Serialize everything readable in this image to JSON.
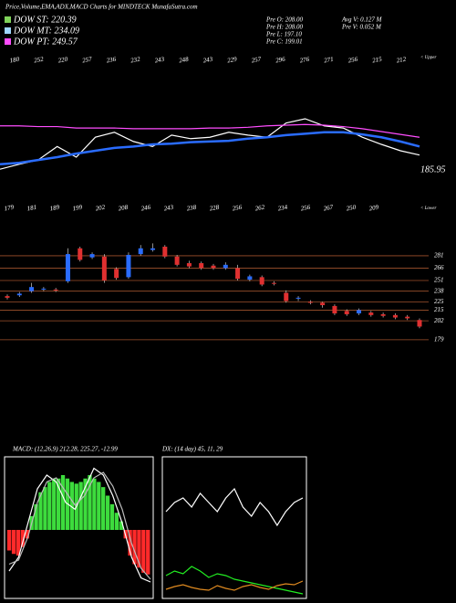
{
  "header": {
    "title": "Price,Volume,EMA,ADX,MACD Charts for MINDTECK MunafaSutra.com",
    "legend": [
      {
        "label": "DOW ST: 220.39",
        "color": "#7fd35a"
      },
      {
        "label": "DOW MT: 234.09",
        "color": "#9fd8ff"
      },
      {
        "label": "DOW PT: 249.57",
        "color": "#ff4dff"
      }
    ],
    "info": [
      "Pre  O: 208.00",
      "Pre  H: 208.00",
      "Pre  L: 197.10",
      "Pre  C: 199.01",
      "Avg V: 0.127 M",
      "Pre  V: 0.052 M"
    ],
    "upper": "< Upper",
    "lower": "< Lower",
    "last_price": "185.95",
    "top_labels": [
      "180",
      "252",
      "220",
      "257",
      "236",
      "232",
      "243",
      "248",
      "243",
      "229",
      "257",
      "296",
      "276",
      "271",
      "256",
      "215",
      "212"
    ],
    "bottom_labels": [
      "179",
      "181",
      "189",
      "199",
      "202",
      "208",
      "246",
      "243",
      "238",
      "228",
      "256",
      "262",
      "234",
      "256",
      "267",
      "250",
      "209"
    ],
    "macd_label": "MACD: (12,26,9) 212.28, 225.27, -12.99",
    "adx_label": "DX: (14 day) 45, 11, 29"
  },
  "chart_data": [
    {
      "type": "line",
      "ylim": [
        140,
        320
      ],
      "series": [
        {
          "name": "Price",
          "color": "#ffffff",
          "values": [
            159,
            166,
            172,
            191,
            176,
            204,
            211,
            198,
            191,
            207,
            202,
            204,
            211,
            207,
            204,
            224,
            230,
            220,
            217,
            204,
            194,
            185,
            179
          ]
        },
        {
          "name": "EMA",
          "color": "#2a6cff",
          "values": [
            166,
            168,
            172,
            176,
            181,
            185,
            189,
            191,
            194,
            195,
            197,
            198,
            199,
            202,
            204,
            207,
            209,
            211,
            211,
            208,
            204,
            198,
            191
          ]
        },
        {
          "name": "DOW PT",
          "color": "#ff4dff",
          "values": [
            220,
            220,
            219,
            219,
            217,
            217,
            217,
            216,
            216,
            216,
            216,
            217,
            217,
            218,
            220,
            221,
            222,
            221,
            219,
            216,
            212,
            208,
            204
          ]
        }
      ]
    },
    {
      "type": "candlestick",
      "up_color": "#2a6cff",
      "down_color": "#e03030",
      "ylim": [
        170,
        292
      ],
      "yticks": [
        281,
        266,
        251,
        238,
        225,
        215,
        202,
        179
      ],
      "open": [
        232,
        233,
        238,
        240,
        240,
        250,
        290,
        279,
        280,
        265,
        255,
        283,
        288,
        292,
        280,
        272,
        272,
        269,
        266,
        266,
        252,
        255,
        248,
        236,
        229,
        225,
        224,
        220,
        214,
        211,
        212,
        210,
        209,
        207,
        203
      ],
      "high": [
        234,
        237,
        248,
        243,
        242,
        290,
        292,
        285,
        283,
        267,
        285,
        294,
        296,
        294,
        282,
        275,
        274,
        271,
        273,
        270,
        258,
        257,
        250,
        239,
        232,
        227,
        225,
        222,
        216,
        217,
        214,
        212,
        211,
        209,
        205
      ],
      "low": [
        228,
        231,
        236,
        238,
        237,
        248,
        274,
        277,
        248,
        252,
        253,
        281,
        286,
        278,
        268,
        266,
        264,
        264,
        264,
        251,
        250,
        244,
        245,
        224,
        226,
        222,
        218,
        209,
        208,
        209,
        207,
        206,
        204,
        203,
        193
      ],
      "close": [
        230,
        235,
        243,
        241,
        239,
        283,
        276,
        283,
        251,
        254,
        282,
        290,
        290,
        280,
        270,
        268,
        266,
        266,
        270,
        253,
        256,
        246,
        247,
        226,
        230,
        224,
        221,
        211,
        210,
        215,
        209,
        208,
        206,
        205,
        195
      ]
    },
    {
      "type": "bar",
      "pos_color": "#3ddc3d",
      "neg_color": "#ff2a2a",
      "ylim": [
        -40,
        40
      ],
      "values": [
        -12,
        -14,
        -15,
        -10,
        -5,
        8,
        15,
        22,
        25,
        28,
        30,
        30,
        32,
        30,
        28,
        27,
        28,
        30,
        32,
        30,
        28,
        25,
        20,
        15,
        10,
        5,
        -5,
        -15,
        -20,
        -22,
        -25,
        -26
      ]
    },
    {
      "type": "line",
      "ylim": [
        -50,
        50
      ],
      "series": [
        {
          "name": "MACD",
          "color": "#ffffff",
          "values": [
            -30,
            -20,
            5,
            30,
            40,
            35,
            20,
            15,
            30,
            45,
            40,
            25,
            5,
            -20,
            -35,
            -38
          ]
        },
        {
          "name": "Signal",
          "color": "#bbbbbb",
          "values": [
            -25,
            -22,
            -5,
            20,
            35,
            38,
            28,
            18,
            25,
            38,
            42,
            32,
            15,
            -10,
            -28,
            -36
          ]
        }
      ]
    },
    {
      "type": "line",
      "ylim": [
        0,
        60
      ],
      "series": [
        {
          "name": "ADX",
          "color": "#ffffff",
          "values": [
            38,
            42,
            44,
            40,
            46,
            42,
            38,
            44,
            48,
            40,
            36,
            42,
            38,
            32,
            38,
            42,
            44
          ]
        },
        {
          "name": "+DI",
          "color": "#22ee22",
          "values": [
            10,
            12,
            10.8,
            14,
            12,
            9.2,
            10.8,
            10,
            8.4,
            7.6,
            6.8,
            6,
            5.2,
            4.4,
            3.6,
            2.8,
            2
          ]
        },
        {
          "name": "-DI",
          "color": "#e08a20",
          "values": [
            4,
            5.2,
            6,
            4.8,
            4,
            3.6,
            5.6,
            4.4,
            3.6,
            5.2,
            6,
            4.8,
            4,
            5.6,
            6.4,
            6,
            7.6
          ]
        }
      ]
    }
  ]
}
